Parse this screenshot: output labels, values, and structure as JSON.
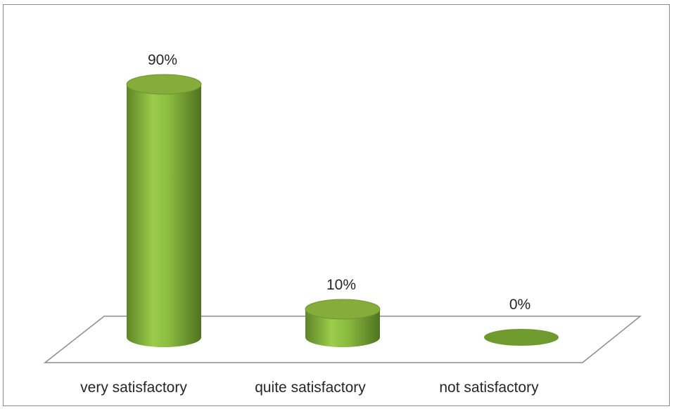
{
  "chart_data": {
    "type": "bar",
    "style": "3d-cylinder",
    "categories": [
      "very satisfactory",
      "quite satisfactory",
      "not satisfactory"
    ],
    "values": [
      90,
      10,
      0
    ],
    "data_labels": [
      "90%",
      "10%",
      "0%"
    ],
    "unit": "%",
    "ylim": [
      0,
      100
    ],
    "grid": false,
    "legend": "none",
    "colors": {
      "bar_light": "#9ccc4a",
      "bar_mid": "#7aa33a",
      "bar_dark": "#4f7321",
      "bar_top": "#86ac3c",
      "floor_stroke": "#8c8c8c"
    }
  }
}
